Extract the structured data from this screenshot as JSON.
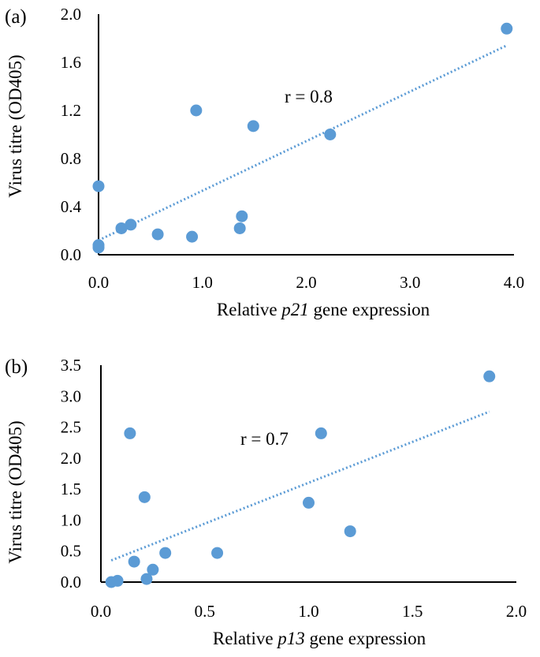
{
  "chart_data": [
    {
      "type": "scatter",
      "panel_label": "(a)",
      "xlabel_parts": [
        "Relative ",
        "p21",
        " gene expression"
      ],
      "ylabel": "Virus titre (OD405)",
      "xlim": [
        0,
        4
      ],
      "ylim": [
        0,
        2
      ],
      "xticks": [
        "0.0",
        "1.0",
        "2.0",
        "3.0",
        "4.0"
      ],
      "yticks": [
        "0.0",
        "0.4",
        "0.8",
        "1.2",
        "1.6",
        "2.0"
      ],
      "annotation": "r = 0.8",
      "color": "#5b9bd5",
      "points": [
        {
          "x": 0.0,
          "y": 0.57
        },
        {
          "x": 0.0,
          "y": 0.08
        },
        {
          "x": 0.0,
          "y": 0.06
        },
        {
          "x": 0.22,
          "y": 0.22
        },
        {
          "x": 0.31,
          "y": 0.25
        },
        {
          "x": 0.57,
          "y": 0.17
        },
        {
          "x": 0.9,
          "y": 0.15
        },
        {
          "x": 0.94,
          "y": 1.2
        },
        {
          "x": 1.36,
          "y": 0.22
        },
        {
          "x": 1.38,
          "y": 0.32
        },
        {
          "x": 1.49,
          "y": 1.07
        },
        {
          "x": 2.23,
          "y": 1.0
        },
        {
          "x": 3.93,
          "y": 1.88
        }
      ],
      "trendline": {
        "x": [
          0.0,
          3.93
        ],
        "y": [
          0.12,
          1.74
        ]
      }
    },
    {
      "type": "scatter",
      "panel_label": "(b)",
      "xlabel_parts": [
        "Relative ",
        "p13",
        " gene expression"
      ],
      "ylabel": "Virus titre (OD405)",
      "xlim": [
        0,
        2
      ],
      "ylim": [
        0,
        3.5
      ],
      "xticks": [
        "0.0",
        "0.5",
        "1.0",
        "1.5",
        "2.0"
      ],
      "yticks": [
        "0.0",
        "0.5",
        "1.0",
        "1.5",
        "2.0",
        "2.5",
        "3.0",
        "3.5"
      ],
      "annotation": "r = 0.7",
      "color": "#5b9bd5",
      "points": [
        {
          "x": 0.05,
          "y": 0.0
        },
        {
          "x": 0.08,
          "y": 0.02
        },
        {
          "x": 0.14,
          "y": 2.4
        },
        {
          "x": 0.16,
          "y": 0.33
        },
        {
          "x": 0.21,
          "y": 1.37
        },
        {
          "x": 0.22,
          "y": 0.05
        },
        {
          "x": 0.25,
          "y": 0.2
        },
        {
          "x": 0.31,
          "y": 0.47
        },
        {
          "x": 0.56,
          "y": 0.47
        },
        {
          "x": 1.0,
          "y": 1.28
        },
        {
          "x": 1.06,
          "y": 2.4
        },
        {
          "x": 1.2,
          "y": 0.82
        },
        {
          "x": 1.87,
          "y": 3.32
        }
      ],
      "trendline": {
        "x": [
          0.05,
          1.87
        ],
        "y": [
          0.35,
          2.75
        ]
      }
    }
  ]
}
